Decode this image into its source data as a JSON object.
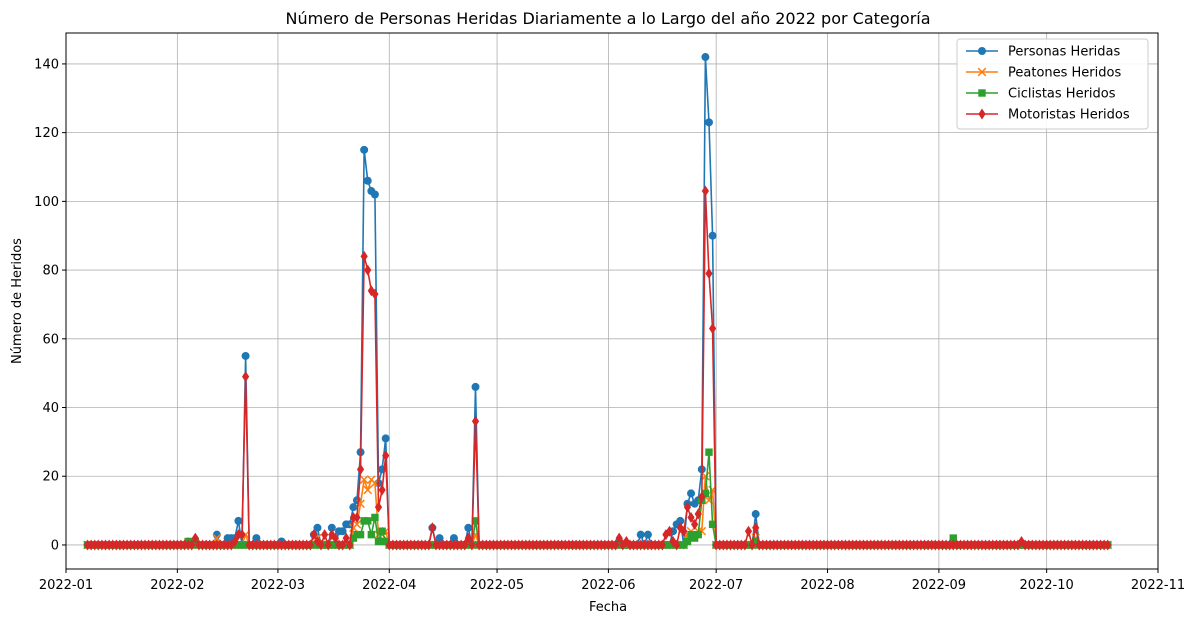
{
  "chart_data": {
    "type": "line",
    "title": "Número de Personas Heridas Diariamente a lo Largo del año 2022 por Categoría",
    "xlabel": "Fecha",
    "ylabel": "Número de Heridos",
    "x_start": "2022-01-07",
    "x_end": "2022-10-18",
    "x_range": [
      "2022-01-01",
      "2022-11-01"
    ],
    "ylim": [
      -7,
      149
    ],
    "x_ticks": [
      "2022-01",
      "2022-02",
      "2022-03",
      "2022-04",
      "2022-05",
      "2022-06",
      "2022-07",
      "2022-08",
      "2022-09",
      "2022-10",
      "2022-11"
    ],
    "y_ticks": [
      0,
      20,
      40,
      60,
      80,
      100,
      120,
      140
    ],
    "grid": true,
    "legend_position": "top-right",
    "series": [
      {
        "name": "Personas Heridas",
        "color": "#1f77b4",
        "marker": "circle",
        "default": 0,
        "points": {
          "2022-02-04": 1,
          "2022-02-06": 1,
          "2022-02-12": 3,
          "2022-02-15": 2,
          "2022-02-16": 2,
          "2022-02-17": 2,
          "2022-02-18": 7,
          "2022-02-20": 55,
          "2022-02-23": 2,
          "2022-03-02": 1,
          "2022-03-11": 3,
          "2022-03-12": 5,
          "2022-03-16": 5,
          "2022-03-18": 4,
          "2022-03-19": 4,
          "2022-03-20": 6,
          "2022-03-21": 6,
          "2022-03-22": 11,
          "2022-03-23": 13,
          "2022-03-24": 27,
          "2022-03-25": 115,
          "2022-03-26": 106,
          "2022-03-27": 103,
          "2022-03-28": 102,
          "2022-03-29": 18,
          "2022-03-30": 22,
          "2022-03-31": 31,
          "2022-04-13": 5,
          "2022-04-15": 2,
          "2022-04-19": 2,
          "2022-04-23": 5,
          "2022-04-25": 46,
          "2022-06-04": 1,
          "2022-06-10": 3,
          "2022-06-12": 3,
          "2022-06-19": 4,
          "2022-06-20": 6,
          "2022-06-21": 7,
          "2022-06-23": 12,
          "2022-06-24": 15,
          "2022-06-25": 12,
          "2022-06-26": 13,
          "2022-06-27": 22,
          "2022-06-28": 142,
          "2022-06-29": 123,
          "2022-06-30": 90,
          "2022-07-12": 9
        }
      },
      {
        "name": "Peatones Heridos",
        "color": "#ff7f0e",
        "marker": "x",
        "default": 0,
        "points": {
          "2022-02-12": 2,
          "2022-02-20": 3,
          "2022-03-12": 2,
          "2022-03-22": 5,
          "2022-03-23": 6,
          "2022-03-24": 12,
          "2022-03-25": 19,
          "2022-03-26": 16,
          "2022-03-27": 19,
          "2022-03-28": 18,
          "2022-03-29": 3,
          "2022-03-30": 3,
          "2022-03-31": 4,
          "2022-04-25": 3,
          "2022-06-23": 3,
          "2022-06-24": 4,
          "2022-06-25": 3,
          "2022-06-26": 4,
          "2022-06-27": 4,
          "2022-06-28": 20,
          "2022-06-29": 13,
          "2022-06-30": 16,
          "2022-07-12": 2
        }
      },
      {
        "name": "Ciclistas Heridos",
        "color": "#2ca02c",
        "marker": "square",
        "default": 0,
        "points": {
          "2022-02-04": 1,
          "2022-02-06": 1,
          "2022-03-22": 2,
          "2022-03-23": 3,
          "2022-03-24": 3,
          "2022-03-25": 7,
          "2022-03-26": 7,
          "2022-03-27": 3,
          "2022-03-28": 8,
          "2022-03-29": 1,
          "2022-03-30": 4,
          "2022-03-31": 1,
          "2022-04-25": 7,
          "2022-06-23": 1,
          "2022-06-24": 3,
          "2022-06-25": 2,
          "2022-06-26": 3,
          "2022-06-27": 13,
          "2022-06-28": 15,
          "2022-06-29": 27,
          "2022-06-30": 6,
          "2022-07-12": 1,
          "2022-09-05": 2
        }
      },
      {
        "name": "Motoristas Heridos",
        "color": "#d62728",
        "marker": "diamond",
        "default": 0,
        "points": {
          "2022-02-06": 2,
          "2022-02-17": 1,
          "2022-02-18": 3,
          "2022-02-19": 3,
          "2022-02-20": 49,
          "2022-03-11": 3,
          "2022-03-12": 1,
          "2022-03-14": 3,
          "2022-03-16": 3,
          "2022-03-17": 2,
          "2022-03-20": 2,
          "2022-03-22": 8,
          "2022-03-23": 8,
          "2022-03-24": 22,
          "2022-03-25": 84,
          "2022-03-26": 80,
          "2022-03-27": 74,
          "2022-03-28": 73,
          "2022-03-29": 11,
          "2022-03-30": 16,
          "2022-03-31": 26,
          "2022-04-13": 5,
          "2022-04-23": 2,
          "2022-04-25": 36,
          "2022-06-04": 2,
          "2022-06-06": 1,
          "2022-06-17": 3,
          "2022-06-18": 4,
          "2022-06-19": 1,
          "2022-06-21": 5,
          "2022-06-22": 4,
          "2022-06-23": 11,
          "2022-06-24": 8,
          "2022-06-25": 6,
          "2022-06-26": 9,
          "2022-06-27": 14,
          "2022-06-28": 103,
          "2022-06-29": 79,
          "2022-06-30": 63,
          "2022-07-10": 4,
          "2022-07-12": 5,
          "2022-09-24": 1
        }
      }
    ]
  }
}
